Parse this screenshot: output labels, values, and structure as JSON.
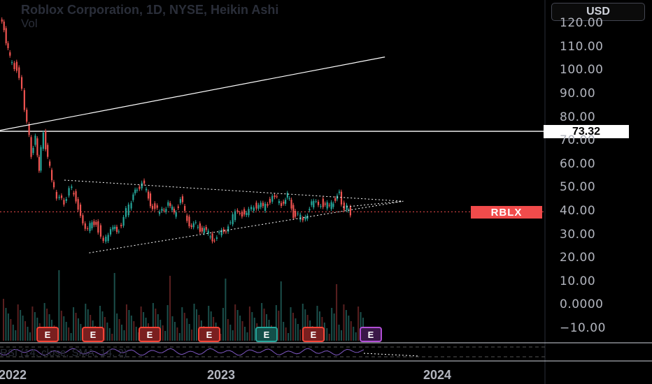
{
  "header": {
    "title": "Roblox Corporation, 1D, NYSE, Heikin Ashi",
    "vol_label": "Vol",
    "currency": "USD"
  },
  "markers": {
    "price_label": "73.32",
    "ticker_label": "RBLX"
  },
  "rsi_label": "RSI (14, close, SMA, 14, 2)",
  "earnings": [
    "E",
    "E",
    "E",
    "E",
    "E",
    "E",
    "E"
  ],
  "colors": {
    "up": "#26a69a",
    "down": "#ef5350",
    "earnings_up": "#26a69a",
    "earnings_down": "#f44336",
    "earnings_next": "#b14fd6",
    "rsi": "#7e57c2"
  },
  "chart_data": {
    "type": "candlestick",
    "title": "Roblox Corporation, 1D, NYSE, Heikin Ashi",
    "y_axis_ticks": [
      "120.00",
      "110.00",
      "100.00",
      "90.00",
      "80.00",
      "70.00",
      "60.00",
      "50.00",
      "40.00",
      "30.00",
      "20.00",
      "10.00",
      "0.0000",
      "−10.00"
    ],
    "x_axis_ticks": [
      "2022",
      "2023",
      "2024"
    ],
    "ylim": [
      -10,
      120
    ],
    "horizontal_line": 73.32,
    "last_price_level": 39,
    "series_close": [
      [
        "2022-01-03",
        116
      ],
      [
        "2022-01-10",
        104
      ],
      [
        "2022-01-20",
        100
      ],
      [
        "2022-02-01",
        90
      ],
      [
        "2022-02-10",
        78
      ],
      [
        "2022-02-18",
        63
      ],
      [
        "2022-02-25",
        70
      ],
      [
        "2022-03-04",
        58
      ],
      [
        "2022-03-10",
        72
      ],
      [
        "2022-03-18",
        52
      ],
      [
        "2022-04-01",
        46
      ],
      [
        "2022-04-10",
        42
      ],
      [
        "2022-04-22",
        50
      ],
      [
        "2022-05-01",
        45
      ],
      [
        "2022-05-12",
        36
      ],
      [
        "2022-05-20",
        32
      ],
      [
        "2022-06-01",
        35
      ],
      [
        "2022-06-15",
        25
      ],
      [
        "2022-06-28",
        33
      ],
      [
        "2022-07-10",
        30
      ],
      [
        "2022-07-20",
        36
      ],
      [
        "2022-08-01",
        42
      ],
      [
        "2022-08-10",
        47
      ],
      [
        "2022-08-20",
        52
      ],
      [
        "2022-09-01",
        43
      ],
      [
        "2022-09-15",
        38
      ],
      [
        "2022-10-01",
        43
      ],
      [
        "2022-10-15",
        38
      ],
      [
        "2022-10-25",
        44
      ],
      [
        "2022-11-05",
        34
      ],
      [
        "2022-11-20",
        33
      ],
      [
        "2022-12-01",
        31
      ],
      [
        "2022-12-15",
        28
      ],
      [
        "2022-12-29",
        29
      ],
      [
        "2023-01-10",
        33
      ],
      [
        "2023-01-25",
        40
      ],
      [
        "2023-02-10",
        37
      ],
      [
        "2023-02-25",
        42
      ],
      [
        "2023-03-10",
        41
      ],
      [
        "2023-03-25",
        45
      ],
      [
        "2023-04-10",
        43
      ],
      [
        "2023-04-25",
        46
      ],
      [
        "2023-05-05",
        38
      ],
      [
        "2023-05-15",
        36
      ],
      [
        "2023-06-01",
        42
      ],
      [
        "2023-06-15",
        43
      ],
      [
        "2023-07-01",
        41
      ],
      [
        "2023-07-15",
        45
      ],
      [
        "2023-07-25",
        46
      ],
      [
        "2023-08-01",
        41
      ],
      [
        "2023-08-10",
        39
      ]
    ],
    "trendlines": [
      {
        "name": "",
        "from": [
          "2022-01-01",
          73.7
        ],
        "to": [
          "2023-10-15",
          105
        ]
      },
      {
        "name": "",
        "style": "dotted",
        "from": [
          "2022-04-20",
          52.5
        ],
        "to": [
          "2023-11-15",
          43.5
        ]
      },
      {
        "name": "",
        "style": "dotted",
        "from": [
          "2022-06-01",
          21.5
        ],
        "to": [
          "2023-11-15",
          43.5
        ]
      }
    ],
    "earnings_dates": [
      "2022-02-15",
      "2022-05-10",
      "2022-08-09",
      "2022-11-09",
      "2023-02-15",
      "2023-05-10",
      "2023-08-09"
    ],
    "earnings_outcomes": [
      "down",
      "down",
      "down",
      "down",
      "up",
      "down",
      "next"
    ]
  }
}
